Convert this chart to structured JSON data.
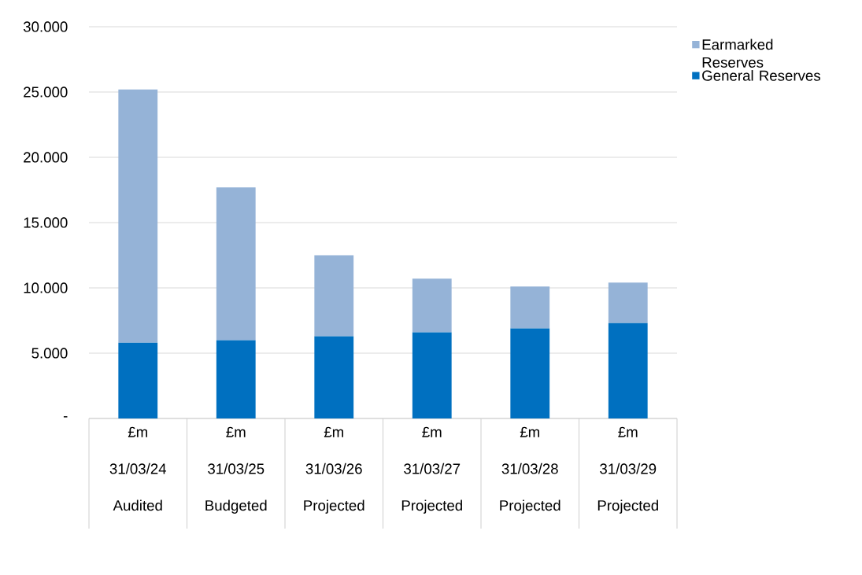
{
  "chart_data": {
    "type": "bar",
    "stacked": true,
    "categories": [
      "£m 31/03/24 Audited",
      "£m 31/03/25 Budgeted",
      "£m 31/03/26 Projected",
      "£m 31/03/27 Projected",
      "£m 31/03/28 Projected",
      "£m 31/03/29 Projected"
    ],
    "series": [
      {
        "name": "General Reserves",
        "color": "#0070c0",
        "values": [
          5.8,
          6.0,
          6.3,
          6.6,
          6.9,
          7.3
        ]
      },
      {
        "name": "Earmarked Reserves",
        "color": "#95b3d7",
        "values": [
          19.4,
          11.7,
          6.2,
          4.1,
          3.2,
          3.1
        ]
      }
    ],
    "ylim": [
      0,
      30
    ],
    "yticks": [
      {
        "value": 0,
        "label": "-"
      },
      {
        "value": 5,
        "label": "5.000"
      },
      {
        "value": 10,
        "label": "10.000"
      },
      {
        "value": 15,
        "label": "15.000"
      },
      {
        "value": 20,
        "label": "20.000"
      },
      {
        "value": 25,
        "label": "25.000"
      },
      {
        "value": 30,
        "label": "30.000"
      }
    ],
    "grid": "y",
    "legend": "right"
  }
}
